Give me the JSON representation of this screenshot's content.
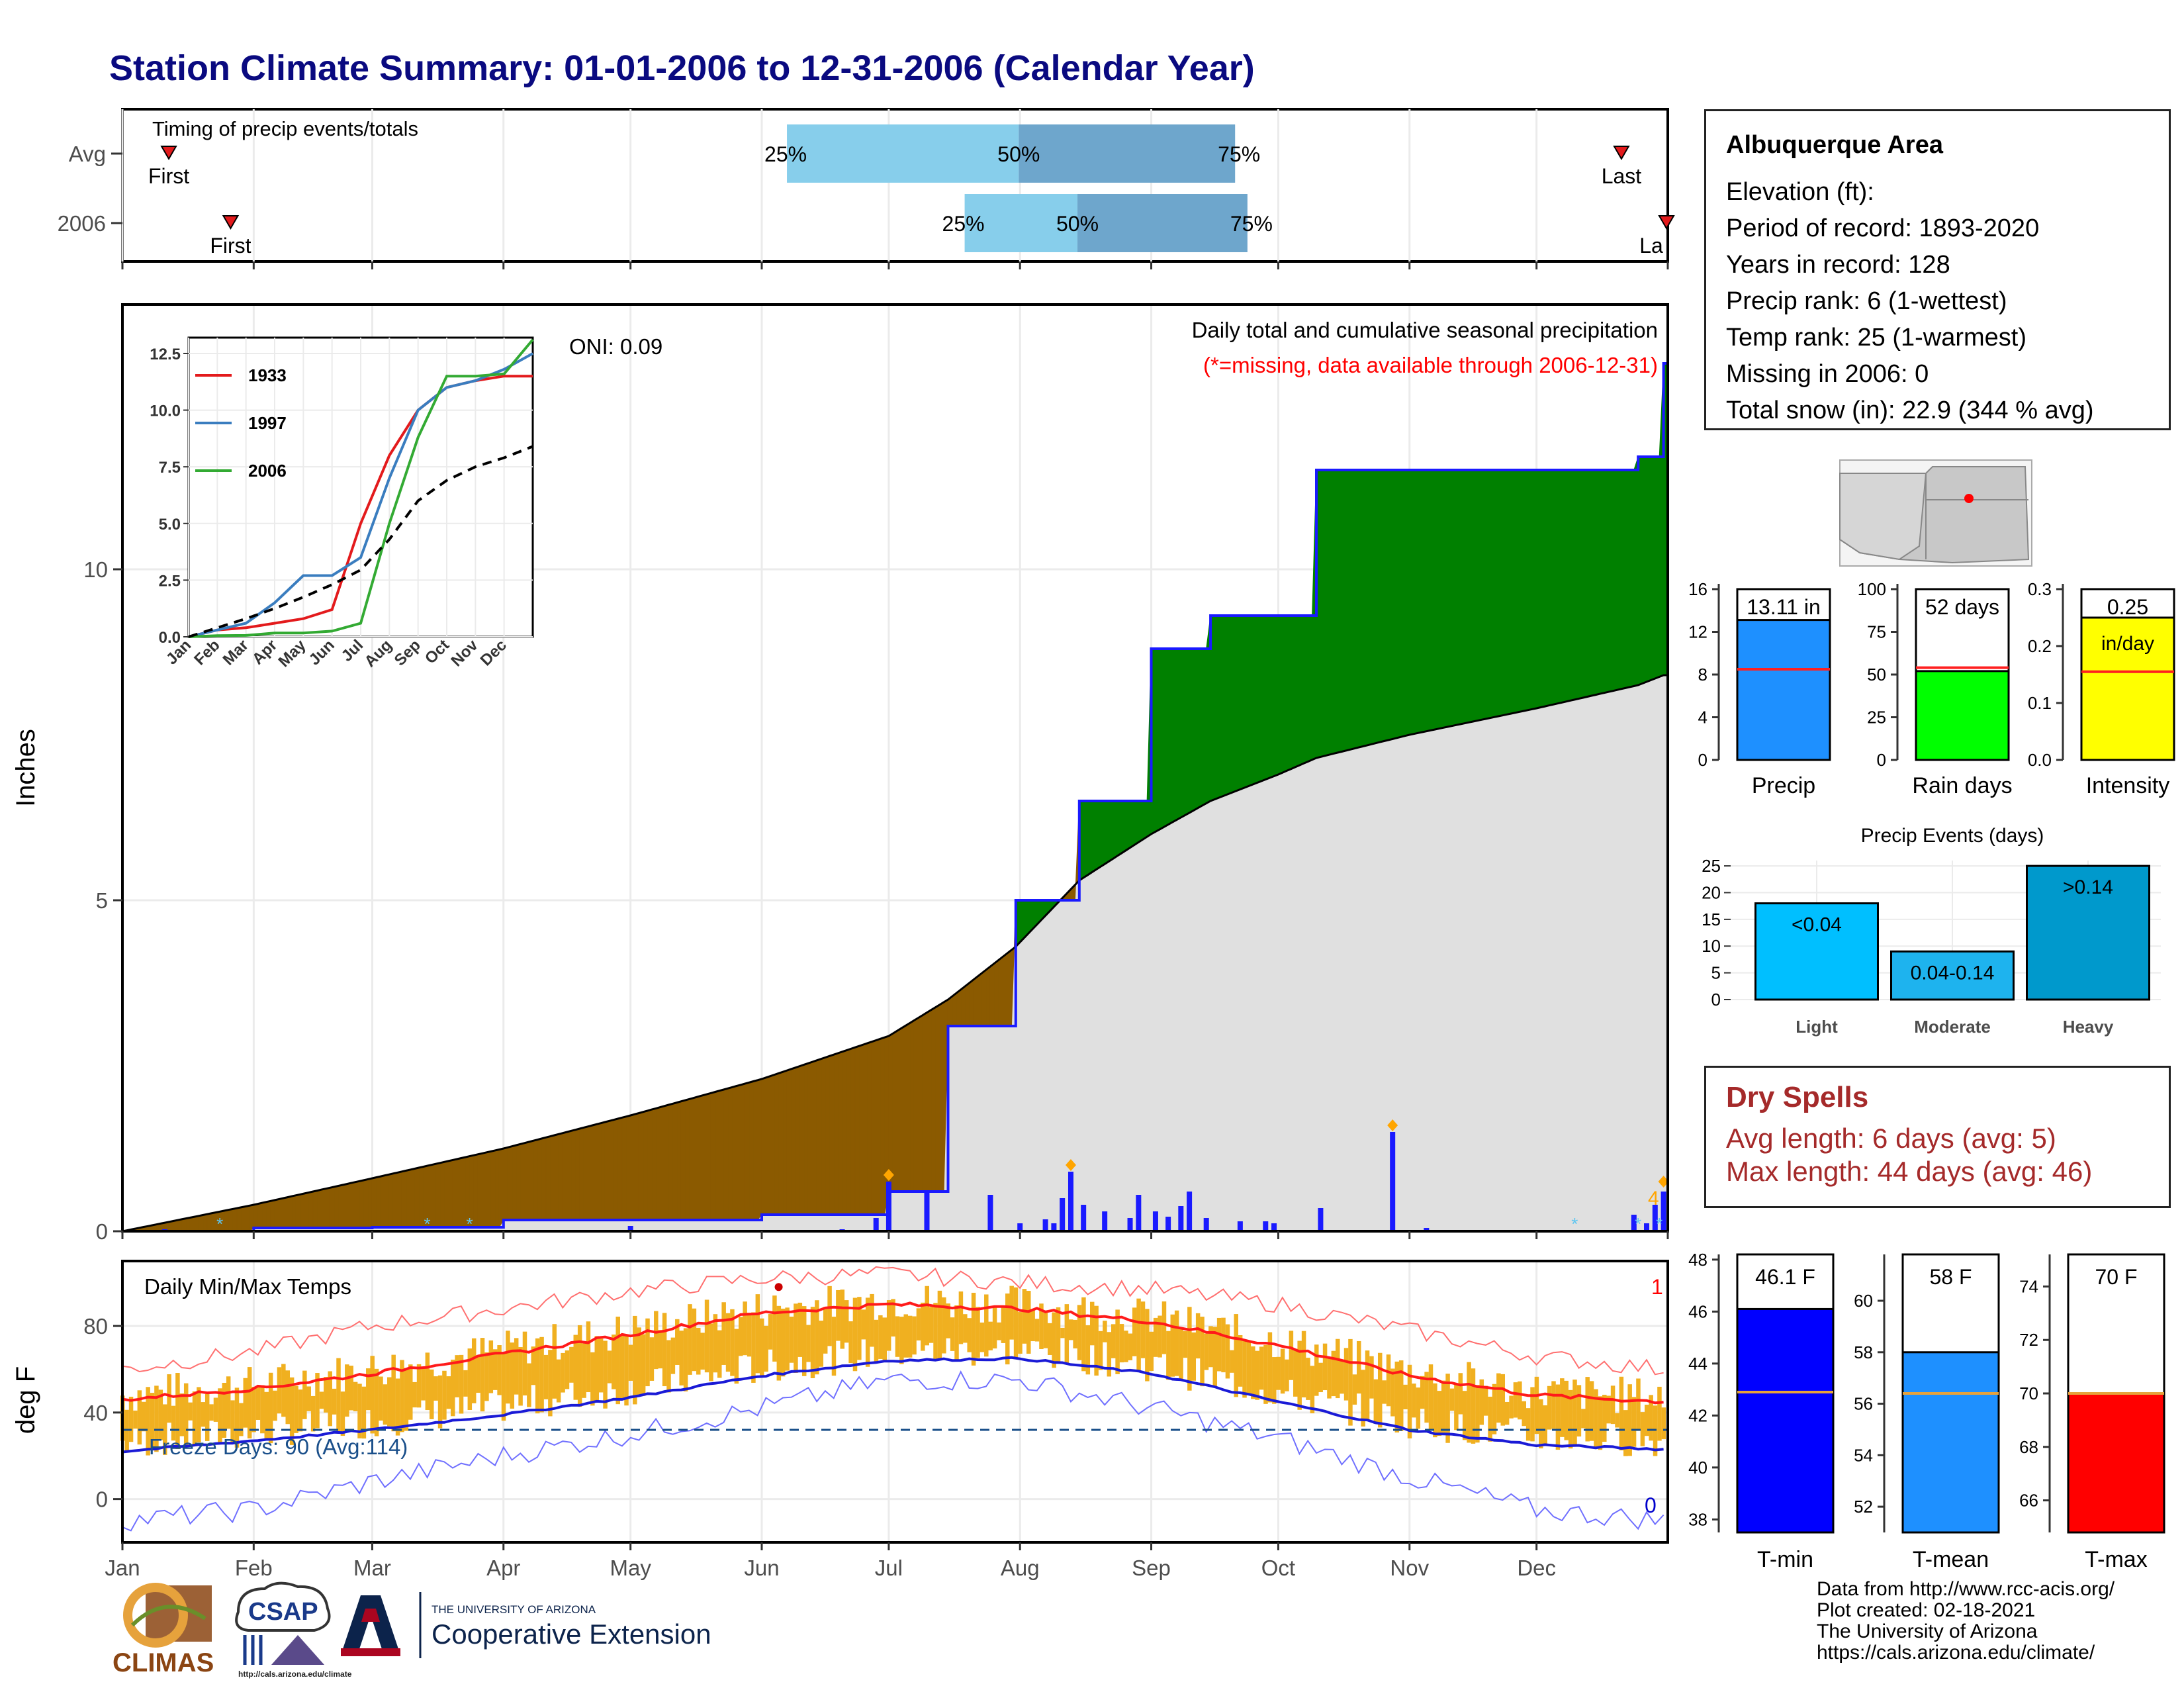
{
  "title": "Station Climate Summary: 01-01-2006 to 12-31-2006 (Calendar Year)",
  "colors": {
    "title": "#0a0a80",
    "dry_curve": "#8b5a00",
    "wet_curve": "#008000",
    "avg_cum": "#e0e0e0",
    "daily_bar": "#1a1aff",
    "tmax_line": "#ff1a1a",
    "tmin_line": "#1a1ad6",
    "temp_bars": "#f0b020",
    "dry_spell_text": "#a52a2a"
  },
  "timing": {
    "label": "Timing of precip events/totals",
    "rows": [
      {
        "label": "Avg",
        "first_marker": "First",
        "last_marker": "Last",
        "first_pos": 0.03,
        "last_pos": 0.97,
        "p25": 0.43,
        "p50": 0.58,
        "p75": 0.72,
        "p25_label": "25%",
        "p50_label": "50%",
        "p75_label": "75%"
      },
      {
        "label": "2006",
        "first_marker": "First",
        "last_marker": "La",
        "first_pos": 0.07,
        "last_pos": 1.0,
        "p25": 0.545,
        "p50": 0.618,
        "p75": 0.728,
        "p25_label": "25%",
        "p50_label": "50%",
        "p75_label": "75%"
      }
    ]
  },
  "main_plot": {
    "ylabel": "Inches",
    "oni": "ONI: 0.09",
    "header": "Daily total and cumulative seasonal precipitation",
    "missing_note": "(*=missing, data available through 2006-12-31)",
    "count_label": "4",
    "y_ticks": [
      "0",
      "5",
      "10"
    ]
  },
  "inset": {
    "y_ticks": [
      "0.0",
      "2.5",
      "5.0",
      "7.5",
      "10.0",
      "12.5"
    ],
    "x_ticks": [
      "Jan",
      "Feb",
      "Mar",
      "Apr",
      "May",
      "Jun",
      "Jul",
      "Aug",
      "Sep",
      "Oct",
      "Nov",
      "Dec"
    ],
    "legend": [
      {
        "name": "1933",
        "color": "#e31a1c"
      },
      {
        "name": "1997",
        "color": "#3a7dbf"
      },
      {
        "name": "2006",
        "color": "#33aa33"
      }
    ]
  },
  "temp_plot": {
    "ylabel": "deg F",
    "label": "Daily Min/Max Temps",
    "freeze": "Freeze Days: 90 (Avg:114)",
    "count_high": "1",
    "count_low": "0",
    "y_ticks": [
      "0",
      "40",
      "80"
    ]
  },
  "months": [
    "Jan",
    "Feb",
    "Mar",
    "Apr",
    "May",
    "Jun",
    "Jul",
    "Aug",
    "Sep",
    "Oct",
    "Nov",
    "Dec"
  ],
  "station": {
    "name": "Albuquerque Area",
    "elevation": "Elevation (ft):",
    "period": "Period of record: 1893-2020",
    "years": "Years in record: 128",
    "precip_rank": "Precip rank: 6 (1-wettest)",
    "temp_rank": "Temp rank: 25 (1-warmest)",
    "missing": "Missing in 2006: 0",
    "snow": "Total snow (in): 22.9 (344 % avg)"
  },
  "summary_bars": {
    "precip": {
      "label": "Precip",
      "value_label": "13.11 in",
      "value": 13.11,
      "avg": 8.5,
      "ymax": 16,
      "ticks": [
        "0",
        "4",
        "8",
        "12",
        "16"
      ],
      "color": "#1e90ff"
    },
    "rain_days": {
      "label": "Rain days",
      "value_label": "52 days",
      "value": 52,
      "avg": 54,
      "ymax": 100,
      "ticks": [
        "0",
        "25",
        "50",
        "75",
        "100"
      ],
      "color": "#00ff00"
    },
    "intensity": {
      "label": "Intensity",
      "value_label": "0.25",
      "unit": "in/day",
      "value": 0.25,
      "avg": 0.155,
      "ymax": 0.3,
      "ticks": [
        "0.0",
        "0.1",
        "0.2",
        "0.3"
      ],
      "color": "#ffff00"
    }
  },
  "events": {
    "title": "Precip Events (days)",
    "ticks": [
      "0",
      "5",
      "10",
      "15",
      "20",
      "25"
    ],
    "bars": [
      {
        "category": "Light",
        "label": "<0.04",
        "value": 18,
        "color": "#00bfff"
      },
      {
        "category": "Moderate",
        "label": "0.04-0.14",
        "value": 9,
        "color": "#1eb3ee"
      },
      {
        "category": "Heavy",
        "label": ">0.14",
        "value": 25,
        "color": "#0099cc"
      }
    ]
  },
  "dry_spells": {
    "title": "Dry Spells",
    "avg": "Avg length: 6 days (avg: 5)",
    "max": "Max length: 44 days (avg: 46)"
  },
  "temp_summary": [
    {
      "label": "T-min",
      "value_label": "46.1 F",
      "value": 46.1,
      "avg": 42.9,
      "ymin": 37.5,
      "ymax": 48.2,
      "ticks": [
        "38",
        "40",
        "42",
        "44",
        "46",
        "48"
      ],
      "color": "#0000ff"
    },
    {
      "label": "T-mean",
      "value_label": "58 F",
      "value": 58.0,
      "avg": 56.4,
      "ymin": 51.0,
      "ymax": 61.8,
      "ticks": [
        "52",
        "54",
        "56",
        "58",
        "60"
      ],
      "color": "#1e90ff"
    },
    {
      "label": "T-max",
      "value_label": "70 F",
      "value": 70.0,
      "avg": 70.0,
      "ymin": 64.8,
      "ymax": 75.2,
      "ticks": [
        "66",
        "68",
        "70",
        "72",
        "74"
      ],
      "color": "#ff0000"
    }
  ],
  "credits": [
    "Data from http://www.rcc-acis.org/",
    "Plot created: 02-18-2021",
    "The University of Arizona",
    "https://cals.arizona.edu/climate/"
  ],
  "logos": {
    "climas": "CLIMAS",
    "csap": "CSAP",
    "csap_url": "http://cals.arizona.edu/climate",
    "ua_small": "THE UNIVERSITY OF ARIZONA",
    "ua_big": "Cooperative Extension"
  },
  "chart_data": [
    {
      "type": "area",
      "title": "Daily total and cumulative seasonal precipitation",
      "ylabel": "Inches",
      "ylim": [
        0,
        14
      ],
      "x": [
        "Jan 1",
        "Feb 1",
        "Mar 1",
        "Apr 1",
        "May 1",
        "Jun 1",
        "Jul 1",
        "Jul 15",
        "Jul 31",
        "Aug 15",
        "Sep 1",
        "Sep 15",
        "Oct 1",
        "Oct 10",
        "Nov 1",
        "Dec 1",
        "Dec 25",
        "Dec 31"
      ],
      "series": [
        {
          "name": "2006",
          "values": [
            0,
            0.05,
            0.06,
            0.17,
            0.17,
            0.25,
            0.6,
            3.1,
            5.0,
            6.5,
            8.8,
            9.3,
            9.3,
            11.5,
            11.5,
            11.5,
            11.7,
            13.11
          ]
        },
        {
          "name": "",
          "values": [
            0,
            0.4,
            0.8,
            1.25,
            1.75,
            2.3,
            2.95,
            3.5,
            4.3,
            5.3,
            6.0,
            6.5,
            6.9,
            7.15,
            7.5,
            7.9,
            8.25,
            8.4
          ]
        }
      ]
    },
    {
      "type": "line",
      "title": "",
      "ylim": [
        0,
        13
      ],
      "x": [
        "Jan",
        "Feb",
        "Mar",
        "Apr",
        "May",
        "Jun",
        "Jul",
        "Aug",
        "Sep",
        "Oct",
        "Nov",
        "Dec",
        "Dec 31"
      ],
      "series": [
        {
          "name": "1933",
          "values": [
            0,
            0.3,
            0.4,
            0.6,
            0.8,
            1.2,
            5.0,
            8.0,
            10.0,
            11.0,
            11.3,
            11.5,
            11.5
          ]
        },
        {
          "name": "1997",
          "values": [
            0,
            0.3,
            0.6,
            1.5,
            2.7,
            2.7,
            3.5,
            7.0,
            10.0,
            11.0,
            11.3,
            11.8,
            12.5
          ]
        },
        {
          "name": "2006",
          "values": [
            0,
            0.05,
            0.06,
            0.17,
            0.17,
            0.25,
            0.6,
            5.0,
            8.8,
            11.5,
            11.5,
            11.6,
            13.11
          ]
        },
        {
          "name": "",
          "values": [
            0,
            0.4,
            0.8,
            1.25,
            1.75,
            2.3,
            2.95,
            4.3,
            6.0,
            6.9,
            7.5,
            7.9,
            8.4
          ]
        }
      ]
    },
    {
      "type": "line",
      "title": "Daily Min/Max Temps",
      "ylabel": "deg F",
      "ylim": [
        -20,
        110
      ],
      "x": [
        "Jan",
        "Feb",
        "Mar",
        "Apr",
        "May",
        "Jun",
        "Jul",
        "Aug",
        "Sep",
        "Oct",
        "Nov",
        "Dec",
        "Dec 31"
      ],
      "series": [
        {
          "name": "",
          "values": [
            46,
            51,
            58,
            67,
            76,
            86,
            90,
            88,
            82,
            71,
            57,
            48,
            45
          ]
        },
        {
          "name": "",
          "values": [
            22,
            27,
            32,
            39,
            47,
            57,
            64,
            65,
            58,
            45,
            32,
            25,
            23
          ]
        },
        {
          "name": "",
          "values": [
            60,
            68,
            80,
            88,
            96,
            102,
            104,
            100,
            97,
            90,
            78,
            66,
            60
          ]
        },
        {
          "name": "",
          "values": [
            -10,
            -5,
            8,
            20,
            30,
            42,
            55,
            55,
            42,
            28,
            10,
            -5,
            -10
          ]
        }
      ],
      "reference_line": 32
    },
    {
      "type": "bar",
      "categories": [
        "Precip",
        "Rain days",
        "Intensity"
      ],
      "values": [
        13.11,
        52,
        0.25
      ]
    },
    {
      "type": "bar",
      "title": "Precip Events (days)",
      "categories": [
        "Light",
        "Moderate",
        "Heavy"
      ],
      "values": [
        18,
        9,
        25
      ],
      "ylim": [
        0,
        25
      ]
    },
    {
      "type": "bar",
      "categories": [
        "T-min",
        "T-mean",
        "T-max"
      ],
      "values": [
        46.1,
        58,
        70
      ]
    }
  ]
}
